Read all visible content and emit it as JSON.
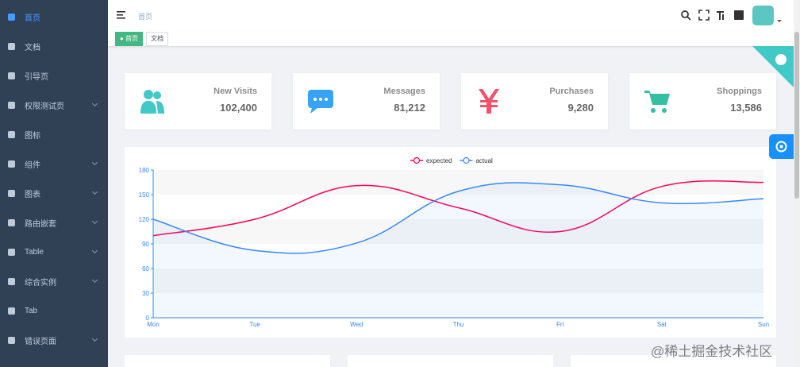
{
  "sidebar": {
    "items": [
      {
        "label": "首页",
        "active": true,
        "submenu": false
      },
      {
        "label": "文档",
        "submenu": false
      },
      {
        "label": "引导页",
        "submenu": false
      },
      {
        "label": "权限测试页",
        "submenu": true
      },
      {
        "label": "图标",
        "submenu": false
      },
      {
        "label": "组件",
        "submenu": true
      },
      {
        "label": "图表",
        "submenu": true
      },
      {
        "label": "路由嵌套",
        "submenu": true
      },
      {
        "label": "Table",
        "submenu": true
      },
      {
        "label": "综合实例",
        "submenu": true
      },
      {
        "label": "Tab",
        "submenu": false
      },
      {
        "label": "错误页面",
        "submenu": true
      }
    ]
  },
  "navbar": {
    "breadcrumb": "首页"
  },
  "tags": [
    {
      "label": "首页",
      "active": true
    },
    {
      "label": "文档",
      "active": false
    }
  ],
  "panels": [
    {
      "label": "New Visits",
      "value": "102,400",
      "color": "#40c9c6"
    },
    {
      "label": "Messages",
      "value": "81,212",
      "color": "#36a3f7"
    },
    {
      "label": "Purchases",
      "value": "9,280",
      "color": "#f4516c"
    },
    {
      "label": "Shoppings",
      "value": "13,586",
      "color": "#34bfa3"
    }
  ],
  "chart_data": {
    "type": "line",
    "categories": [
      "Mon",
      "Tue",
      "Wed",
      "Thu",
      "Fri",
      "Sat",
      "Sun"
    ],
    "series": [
      {
        "name": "expected",
        "color": "#FF005A",
        "values": [
          100,
          120,
          161,
          134,
          105,
          160,
          165
        ]
      },
      {
        "name": "actual",
        "color": "#3888fa",
        "values": [
          120,
          82,
          91,
          154,
          162,
          140,
          145
        ],
        "area": true
      }
    ],
    "ylim": [
      0,
      180
    ],
    "yticks": [
      0,
      30,
      60,
      90,
      120,
      150,
      180
    ]
  },
  "watermark": "@稀土掘金技术社区"
}
